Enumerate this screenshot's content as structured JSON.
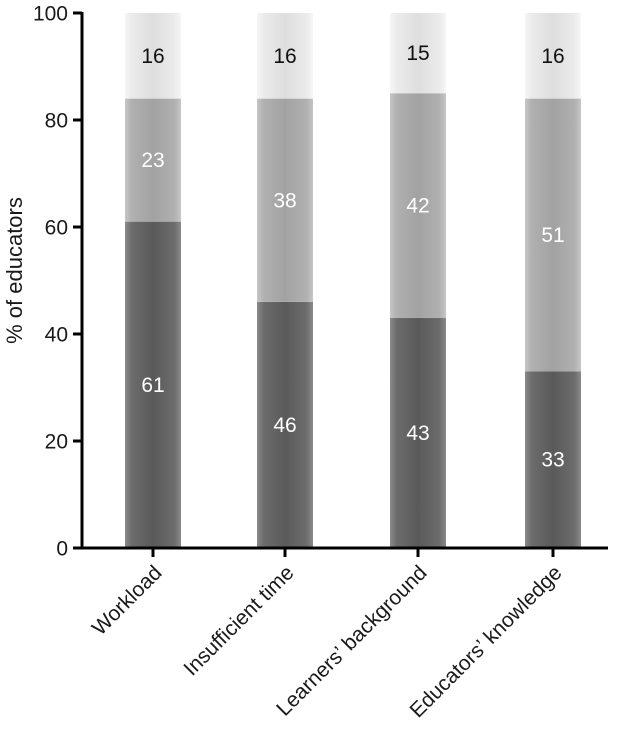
{
  "chart_data": {
    "type": "bar",
    "stacked": true,
    "categories": [
      "Workload",
      "Insufficient time",
      "Learners’ background",
      "Educators’ knowledge"
    ],
    "series": [
      {
        "values": [
          61,
          46,
          43,
          33
        ],
        "color": "#5f5f5f",
        "label_color": "#ffffff"
      },
      {
        "values": [
          23,
          38,
          42,
          51
        ],
        "color": "#a9a9a9",
        "label_color": "#ffffff"
      },
      {
        "values": [
          16,
          16,
          15,
          16
        ],
        "color": "#e6e6e6",
        "label_color": "#111111"
      }
    ],
    "xlabel": "",
    "ylabel": "% of educators",
    "ylim": [
      0,
      100
    ],
    "yticks": [
      0,
      20,
      40,
      60,
      80,
      100
    ],
    "grid": false,
    "legend": "none"
  }
}
